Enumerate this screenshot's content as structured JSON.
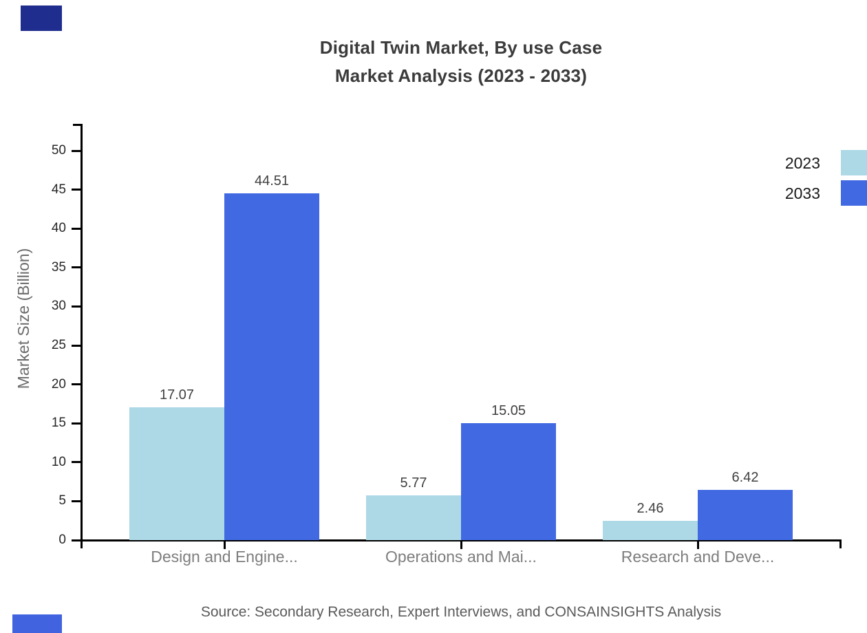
{
  "chart_data": {
    "type": "bar",
    "title": "Digital Twin Market, By use Case",
    "subtitle": "Market Analysis (2023 - 2033)",
    "categories": [
      "Design and Engine...",
      "Operations and Mai...",
      "Research and Deve..."
    ],
    "series": [
      {
        "name": "2023",
        "color": "#add8e6",
        "values": [
          17.07,
          5.77,
          2.46
        ]
      },
      {
        "name": "2033",
        "color": "#4169e1",
        "values": [
          44.51,
          15.05,
          6.42
        ]
      }
    ],
    "value_labels": [
      "17.07",
      "44.51",
      "5.77",
      "15.05",
      "2.46",
      "6.42"
    ],
    "xlabel": "",
    "ylabel": "Market Size (Billion)",
    "ylim": [
      0,
      50
    ],
    "yticks": [
      0,
      5,
      10,
      15,
      20,
      25,
      30,
      35,
      40,
      45,
      50
    ],
    "grid": false,
    "legend_position": "top-right",
    "axis_color": "#000000",
    "source": "Source: Secondary Research, Expert Interviews, and CONSAINSIGHTS Analysis"
  },
  "branding": {
    "top_left_accent_color": "#1f2e8e",
    "bottom_left_accent_color": "#4163df"
  }
}
